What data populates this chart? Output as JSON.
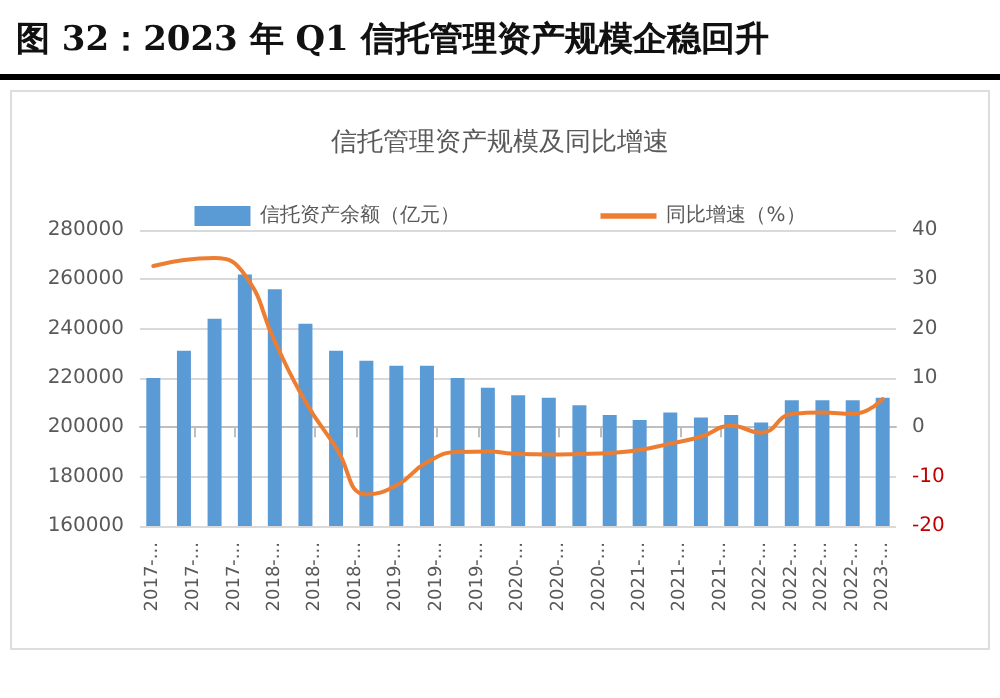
{
  "chart_data": {
    "type": "bar",
    "title": "图 32：2023 年 Q1 信托管理资产规模企稳回升",
    "subtitle": "信托管理资产规模及同比增速",
    "x": [
      "2017-03",
      "2017-06",
      "2017-09",
      "2017-12",
      "2018-03",
      "2018-06",
      "2018-09",
      "2018-12",
      "2019-03",
      "2019-06",
      "2019-09",
      "2019-12",
      "2020-03",
      "2020-06",
      "2020-09",
      "2020-12",
      "2021-03",
      "2021-06",
      "2021-09",
      "2021-12",
      "2022-03",
      "2022-06",
      "2022-09",
      "2022-12",
      "2023-03"
    ],
    "xlim": [
      "2017-01-20",
      "2023-04-10"
    ],
    "xticks": [
      {
        "value": "2017-03",
        "label": "2017-..."
      },
      {
        "value": "2017-07",
        "label": "2017-..."
      },
      {
        "value": "2017-11",
        "label": "2017-..."
      },
      {
        "value": "2018-03",
        "label": "2018-..."
      },
      {
        "value": "2018-07",
        "label": "2018-..."
      },
      {
        "value": "2018-11",
        "label": "2018-..."
      },
      {
        "value": "2019-03",
        "label": "2019-..."
      },
      {
        "value": "2019-07",
        "label": "2019-..."
      },
      {
        "value": "2019-11",
        "label": "2019-..."
      },
      {
        "value": "2020-03",
        "label": "2020-..."
      },
      {
        "value": "2020-07",
        "label": "2020-..."
      },
      {
        "value": "2020-11",
        "label": "2020-..."
      },
      {
        "value": "2021-03",
        "label": "2021-..."
      },
      {
        "value": "2021-07",
        "label": "2021-..."
      },
      {
        "value": "2021-11",
        "label": "2021-..."
      },
      {
        "value": "2022-03",
        "label": "2022-..."
      },
      {
        "value": "2022-06",
        "label": "2022-..."
      },
      {
        "value": "2022-09",
        "label": "2022-..."
      },
      {
        "value": "2022-12",
        "label": "2022-..."
      },
      {
        "value": "2023-03",
        "label": "2023-..."
      }
    ],
    "series": [
      {
        "name": "信托资产余额（亿元）",
        "color": "#5b9bd5",
        "values": [
          220000,
          231000,
          244000,
          262000,
          256000,
          242000,
          231000,
          227000,
          225000,
          225000,
          220000,
          216000,
          213000,
          212000,
          209000,
          205000,
          203000,
          206000,
          204000,
          205000,
          202000,
          211000,
          211000,
          211000,
          212000
        ]
      },
      {
        "name": "同比增速（%）",
        "type": "line",
        "axis": "y2",
        "color": "#ed7d31",
        "values": [
          32.7,
          33.9,
          34.3,
          30.9,
          17.4,
          5.2,
          -4.1,
          -13.6,
          -11.8,
          -7.1,
          -5.0,
          -4.9,
          -5.4,
          -5.5,
          -5.4,
          -5.2,
          -4.6,
          -3.3,
          -1.9,
          0.3,
          -1.1,
          2.7,
          3.0,
          2.7,
          5.7
        ]
      }
    ],
    "ylim": [
      160000,
      280000
    ],
    "yticks": [
      160000,
      180000,
      200000,
      220000,
      240000,
      260000,
      280000
    ],
    "y2lim": [
      -20,
      40
    ],
    "y2ticks": [
      -20,
      -10,
      0,
      10,
      20,
      30,
      40
    ],
    "grid": "y",
    "legend": "top",
    "marker": "none",
    "line_style": "solid"
  }
}
